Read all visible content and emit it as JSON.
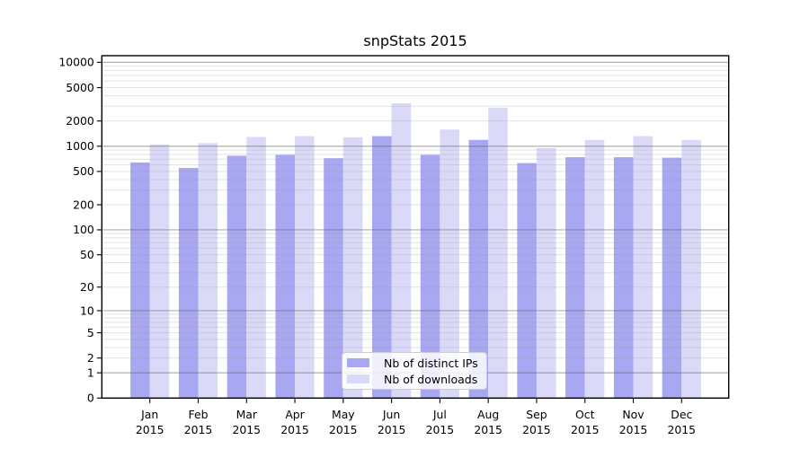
{
  "chart_data": {
    "type": "bar",
    "title": "snpStats 2015",
    "categories": [
      "Jan",
      "Feb",
      "Mar",
      "Apr",
      "May",
      "Jun",
      "Jul",
      "Aug",
      "Sep",
      "Oct",
      "Nov",
      "Dec"
    ],
    "category_year": "2015",
    "series": [
      {
        "name": "Nb of distinct IPs",
        "color": "#a7a7f2",
        "values": [
          640,
          550,
          770,
          790,
          720,
          1320,
          790,
          1190,
          630,
          740,
          740,
          730
        ]
      },
      {
        "name": "Nb of downloads",
        "color": "#dadaf8",
        "values": [
          1050,
          1090,
          1290,
          1320,
          1280,
          3250,
          1580,
          2880,
          950,
          1190,
          1320,
          1190
        ]
      }
    ],
    "xlabel": "",
    "ylabel": "",
    "y_axis": {
      "scale": "log10(1+y)",
      "tick_labels": [
        0,
        1,
        2,
        5,
        10,
        20,
        50,
        100,
        200,
        500,
        1000,
        2000,
        5000,
        10000
      ],
      "ylim": [
        0,
        12000
      ]
    },
    "grid": {
      "horizontal": true,
      "major_at_decades": true,
      "minor_log_lines": true,
      "major_color": "#b5b5b5",
      "minor_color": "#e7e7e7"
    },
    "legend_position": "lower center",
    "bar_fill_to_zero": true,
    "frame_color": "#000000"
  }
}
